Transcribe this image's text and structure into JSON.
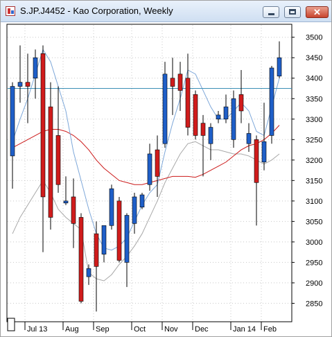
{
  "window": {
    "title": "S.JP.J4452 - Kao Corporation, Weekly",
    "buttons": {
      "minimize": "minimize",
      "maximize": "maximize",
      "close": "✕"
    }
  },
  "chart_data": {
    "type": "candlestick",
    "symbol": "S.JP.J4452",
    "name": "Kao Corporation",
    "period": "Weekly",
    "y_ticks": [
      2850,
      2900,
      2950,
      3000,
      3050,
      3100,
      3150,
      3200,
      3250,
      3300,
      3350,
      3400,
      3450,
      3500
    ],
    "ylim": [
      2805,
      3530
    ],
    "x_labels": [
      {
        "label": "Jul 13",
        "index": 2
      },
      {
        "label": "Aug",
        "index": 7
      },
      {
        "label": "Sep",
        "index": 11
      },
      {
        "label": "Oct",
        "index": 16
      },
      {
        "label": "Nov",
        "index": 20
      },
      {
        "label": "Dec",
        "index": 24
      },
      {
        "label": "Jan 14",
        "index": 29
      },
      {
        "label": "Feb",
        "index": 33
      }
    ],
    "horizontal_line": {
      "value": 3375,
      "color": "#3b8fb5"
    },
    "colors": {
      "up": "#1f5fc8",
      "down": "#d01c1c",
      "ma_short": "#7da7d9",
      "ma_mid": "#cc1a1a",
      "ma_long": "#a8a8a8"
    },
    "candles": [
      {
        "o": 3210,
        "h": 3390,
        "l": 3130,
        "c": 3380
      },
      {
        "o": 3380,
        "h": 3480,
        "l": 3340,
        "c": 3390
      },
      {
        "o": 3390,
        "h": 3460,
        "l": 3290,
        "c": 3380
      },
      {
        "o": 3400,
        "h": 3470,
        "l": 3350,
        "c": 3450
      },
      {
        "o": 3460,
        "h": 3480,
        "l": 2975,
        "c": 3110
      },
      {
        "o": 3330,
        "h": 3390,
        "l": 3030,
        "c": 3060
      },
      {
        "o": 3260,
        "h": 3380,
        "l": 3120,
        "c": 3140
      },
      {
        "o": 3095,
        "h": 3160,
        "l": 3090,
        "c": 3100
      },
      {
        "o": 3110,
        "h": 3155,
        "l": 2985,
        "c": 3045
      },
      {
        "o": 3060,
        "h": 3070,
        "l": 2850,
        "c": 2855
      },
      {
        "o": 2915,
        "h": 2945,
        "l": 2895,
        "c": 2935
      },
      {
        "o": 3020,
        "h": 3050,
        "l": 2830,
        "c": 2940
      },
      {
        "o": 2970,
        "h": 3040,
        "l": 2950,
        "c": 3040
      },
      {
        "o": 3040,
        "h": 3140,
        "l": 3030,
        "c": 3130
      },
      {
        "o": 3100,
        "h": 3110,
        "l": 2950,
        "c": 2955
      },
      {
        "o": 2950,
        "h": 3070,
        "l": 2890,
        "c": 3065
      },
      {
        "o": 3045,
        "h": 3120,
        "l": 3020,
        "c": 3110
      },
      {
        "o": 3085,
        "h": 3120,
        "l": 3080,
        "c": 3115
      },
      {
        "o": 3140,
        "h": 3240,
        "l": 3125,
        "c": 3215
      },
      {
        "o": 3225,
        "h": 3260,
        "l": 3110,
        "c": 3160
      },
      {
        "o": 3240,
        "h": 3440,
        "l": 3230,
        "c": 3410
      },
      {
        "o": 3400,
        "h": 3450,
        "l": 3310,
        "c": 3380
      },
      {
        "o": 3410,
        "h": 3440,
        "l": 3320,
        "c": 3370
      },
      {
        "o": 3400,
        "h": 3460,
        "l": 3260,
        "c": 3280
      },
      {
        "o": 3360,
        "h": 3370,
        "l": 3250,
        "c": 3260
      },
      {
        "o": 3290,
        "h": 3310,
        "l": 3160,
        "c": 3260
      },
      {
        "o": 3240,
        "h": 3290,
        "l": 3200,
        "c": 3280
      },
      {
        "o": 3300,
        "h": 3320,
        "l": 3290,
        "c": 3310
      },
      {
        "o": 3300,
        "h": 3360,
        "l": 3290,
        "c": 3330
      },
      {
        "o": 3250,
        "h": 3370,
        "l": 3230,
        "c": 3350
      },
      {
        "o": 3360,
        "h": 3420,
        "l": 3290,
        "c": 3320
      },
      {
        "o": 3240,
        "h": 3290,
        "l": 3220,
        "c": 3265
      },
      {
        "o": 3250,
        "h": 3260,
        "l": 3040,
        "c": 3145
      },
      {
        "o": 3195,
        "h": 3340,
        "l": 3175,
        "c": 3245
      },
      {
        "o": 3260,
        "h": 3430,
        "l": 3240,
        "c": 3425
      },
      {
        "o": 3405,
        "h": 3490,
        "l": 3400,
        "c": 3450
      }
    ],
    "ma_short": [
      3245,
      3300,
      3350,
      3410,
      3470,
      3440,
      3380,
      3320,
      3220,
      3150,
      3080,
      3020,
      2985,
      2980,
      2990,
      3010,
      3050,
      3090,
      3120,
      3140,
      3220,
      3290,
      3350,
      3420,
      3410,
      3370,
      3330,
      3300,
      3300,
      3320,
      3340,
      3320,
      3270,
      3260,
      3330,
      3400
    ],
    "ma_mid": [
      3230,
      3240,
      3250,
      3260,
      3270,
      3275,
      3275,
      3270,
      3260,
      3245,
      3225,
      3200,
      3180,
      3165,
      3150,
      3145,
      3140,
      3140,
      3145,
      3150,
      3155,
      3160,
      3160,
      3160,
      3158,
      3165,
      3175,
      3185,
      3195,
      3210,
      3225,
      3235,
      3240,
      3250,
      3265,
      3285
    ],
    "ma_long": [
      3020,
      3060,
      3090,
      3120,
      3150,
      3120,
      3080,
      3060,
      3045,
      3030,
      2925,
      2910,
      2905,
      2920,
      2945,
      2965,
      2990,
      3020,
      3060,
      3100,
      3145,
      3180,
      3215,
      3240,
      3245,
      3235,
      3225,
      3225,
      3220,
      3215,
      3215,
      3210,
      3200,
      3190,
      3200,
      3215
    ]
  }
}
